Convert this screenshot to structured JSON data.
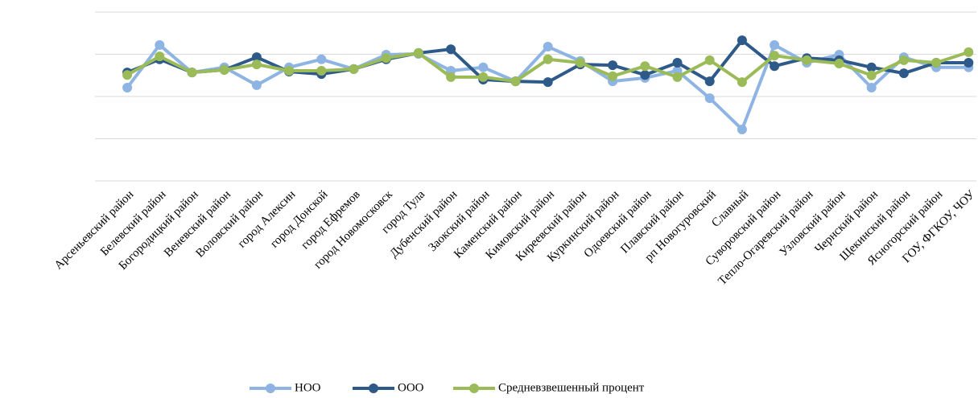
{
  "chart_data": {
    "type": "line",
    "categories": [
      "Арсеньевский район",
      "Белевский район",
      "Богородицкий район",
      "Веневский район",
      "Воловский район",
      "город Алексин",
      "город Донской",
      "город Ефремов",
      "город Новомосковск",
      "город Тула",
      "Дубенский район",
      "Заокский район",
      "Каменский район",
      "Кимовский район",
      "Киреевский район",
      "Куркинский район",
      "Одоевский район",
      "Плавский район",
      "рп Новогуровский",
      "Славный",
      "Суворовский район",
      "Тепло-Огаревский район",
      "Узловский район",
      "Чернский район",
      "Щекинский район",
      "Ясногорский район",
      "ГОУ, ФГКОУ, ЧОУ"
    ],
    "series": [
      {
        "name": "НОО",
        "color": "#8eb4e3",
        "values": [
          2.21,
          3.22,
          2.57,
          2.69,
          2.27,
          2.69,
          2.88,
          2.65,
          2.99,
          3.01,
          2.61,
          2.69,
          2.36,
          3.18,
          2.84,
          2.36,
          2.44,
          2.61,
          1.96,
          1.22,
          3.22,
          2.8,
          2.99,
          2.21,
          2.93,
          2.69,
          2.69
        ]
      },
      {
        "name": "ООО",
        "color": "#2e5a8a",
        "values": [
          2.57,
          2.88,
          2.57,
          2.63,
          2.93,
          2.59,
          2.53,
          2.65,
          2.88,
          3.03,
          3.12,
          2.4,
          2.36,
          2.34,
          2.76,
          2.74,
          2.51,
          2.8,
          2.36,
          3.33,
          2.72,
          2.91,
          2.86,
          2.69,
          2.55,
          2.8,
          2.8
        ]
      },
      {
        "name": "Средневзвешенный процент",
        "color": "#9bbb59",
        "values": [
          2.51,
          2.95,
          2.57,
          2.63,
          2.76,
          2.61,
          2.61,
          2.65,
          2.91,
          3.03,
          2.46,
          2.46,
          2.36,
          2.88,
          2.8,
          2.48,
          2.72,
          2.46,
          2.86,
          2.34,
          2.97,
          2.86,
          2.78,
          2.5,
          2.86,
          2.8,
          3.05
        ]
      }
    ],
    "ylim": [
      0,
      4
    ],
    "gridlines": [
      0,
      1,
      2,
      3,
      4
    ],
    "grid": true,
    "legend": "bottom"
  }
}
